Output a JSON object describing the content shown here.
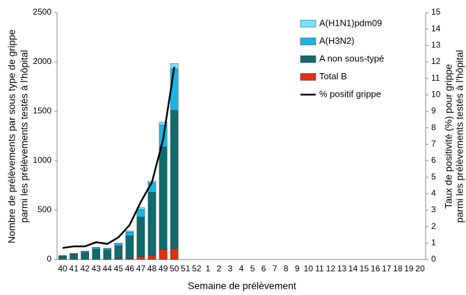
{
  "chart_data": {
    "type": "bar",
    "x_label": "Semaine de prélèvement",
    "y_label": [
      "Nombre de prélèvements par sous type de grippe",
      "parmi les prélèvements testés à l'hôpital"
    ],
    "y2_label": [
      "Taux de positivité (%) pour grippe",
      "parmi les prélèvements testés à l'hôpital"
    ],
    "categories": [
      "40",
      "41",
      "42",
      "43",
      "44",
      "45",
      "46",
      "47",
      "48",
      "49",
      "50",
      "51",
      "52",
      "1",
      "2",
      "3",
      "4",
      "5",
      "6",
      "7",
      "8",
      "9",
      "10",
      "11",
      "12",
      "13",
      "14",
      "15",
      "16",
      "17",
      "18",
      "19",
      "20"
    ],
    "series": [
      {
        "name": "A(H1N1)pdm09",
        "type": "bar",
        "color": "#6fe3ff",
        "values": [
          2,
          2,
          2,
          3,
          3,
          5,
          10,
          20,
          20,
          30,
          55,
          null,
          null,
          null,
          null,
          null,
          null,
          null,
          null,
          null,
          null,
          null,
          null,
          null,
          null,
          null,
          null,
          null,
          null,
          null,
          null,
          null,
          null
        ]
      },
      {
        "name": "A(H3N2)",
        "type": "bar",
        "color": "#1ab4e6",
        "values": [
          5,
          8,
          10,
          15,
          15,
          22,
          40,
          75,
          95,
          220,
          420,
          null,
          null,
          null,
          null,
          null,
          null,
          null,
          null,
          null,
          null,
          null,
          null,
          null,
          null,
          null,
          null,
          null,
          null,
          null,
          null,
          null,
          null
        ]
      },
      {
        "name": "A non sous-typé",
        "type": "bar",
        "color": "#0f6b6e",
        "values": [
          30,
          50,
          70,
          100,
          90,
          130,
          230,
          400,
          640,
          1040,
          1400,
          null,
          null,
          null,
          null,
          null,
          null,
          null,
          null,
          null,
          null,
          null,
          null,
          null,
          null,
          null,
          null,
          null,
          null,
          null,
          null,
          null,
          null
        ]
      },
      {
        "name": "Total B",
        "type": "bar",
        "color": "#e0300f",
        "values": [
          3,
          3,
          3,
          5,
          5,
          8,
          10,
          30,
          40,
          100,
          110,
          null,
          null,
          null,
          null,
          null,
          null,
          null,
          null,
          null,
          null,
          null,
          null,
          null,
          null,
          null,
          null,
          null,
          null,
          null,
          null,
          null,
          null
        ]
      },
      {
        "name": "% positif grippe",
        "type": "line",
        "axis": "y2",
        "color": "#000000",
        "values": [
          0.7,
          0.8,
          0.8,
          1.05,
          0.95,
          1.35,
          2.1,
          3.5,
          4.7,
          7.3,
          11.7,
          null,
          null,
          null,
          null,
          null,
          null,
          null,
          null,
          null,
          null,
          null,
          null,
          null,
          null,
          null,
          null,
          null,
          null,
          null,
          null,
          null,
          null
        ]
      }
    ],
    "ylim": [
      0,
      2500
    ],
    "yticks": [
      0,
      500,
      1000,
      1500,
      2000,
      2500
    ],
    "y2lim": [
      0,
      15
    ],
    "y2ticks": [
      0,
      1,
      2,
      3,
      4,
      5,
      6,
      7,
      8,
      9,
      10,
      11,
      12,
      13,
      14,
      15
    ]
  }
}
